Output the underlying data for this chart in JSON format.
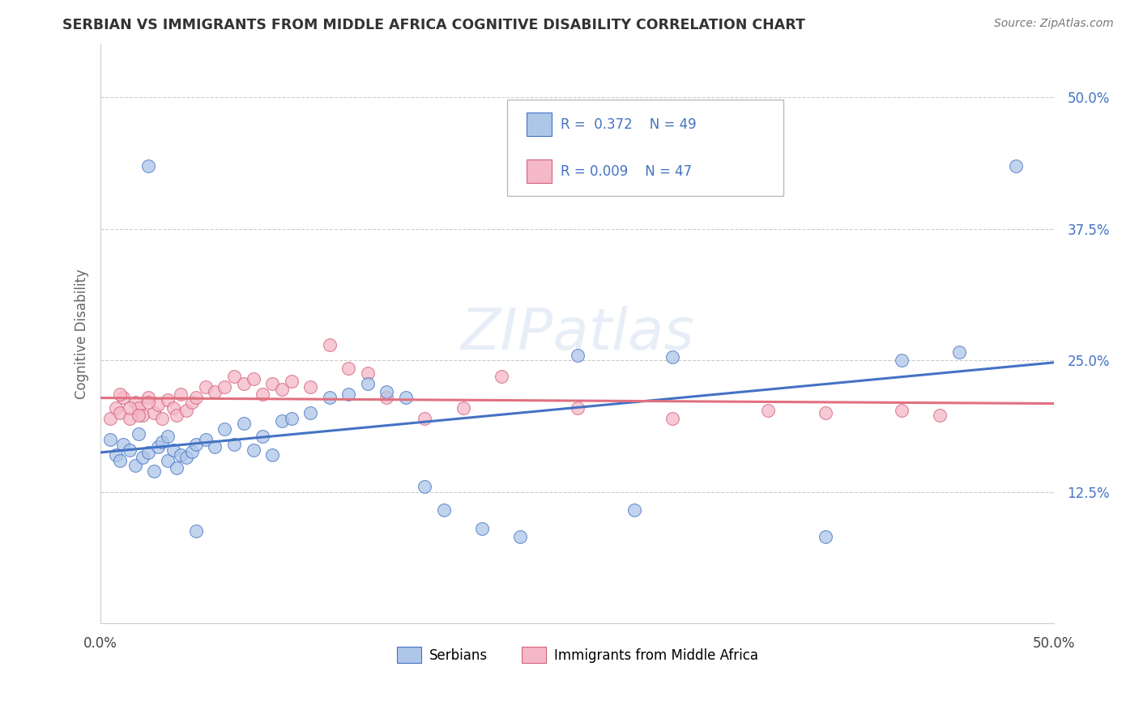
{
  "title": "SERBIAN VS IMMIGRANTS FROM MIDDLE AFRICA COGNITIVE DISABILITY CORRELATION CHART",
  "source": "Source: ZipAtlas.com",
  "ylabel": "Cognitive Disability",
  "legend_label1": "Serbians",
  "legend_label2": "Immigrants from Middle Africa",
  "r1": "0.372",
  "n1": "49",
  "r2": "0.009",
  "n2": "47",
  "xlim": [
    0.0,
    0.5
  ],
  "ylim": [
    0.0,
    0.55
  ],
  "yticks": [
    0.125,
    0.25,
    0.375,
    0.5
  ],
  "ytick_labels": [
    "12.5%",
    "25.0%",
    "37.5%",
    "50.0%"
  ],
  "color_serbian": "#aec6e8",
  "color_immigrant": "#f4b8c8",
  "line_color_serbian": "#4472c4",
  "line_color_immigrant": "#e07080",
  "background_color": "#ffffff",
  "scatter_alpha": 0.75,
  "serbian_x": [
    0.005,
    0.008,
    0.01,
    0.012,
    0.015,
    0.018,
    0.02,
    0.022,
    0.025,
    0.028,
    0.03,
    0.032,
    0.035,
    0.038,
    0.04,
    0.042,
    0.045,
    0.048,
    0.05,
    0.055,
    0.06,
    0.065,
    0.07,
    0.075,
    0.08,
    0.085,
    0.09,
    0.095,
    0.1,
    0.11,
    0.12,
    0.13,
    0.14,
    0.15,
    0.16,
    0.17,
    0.18,
    0.2,
    0.22,
    0.25,
    0.28,
    0.3,
    0.38,
    0.42,
    0.45,
    0.48,
    0.025,
    0.035,
    0.05
  ],
  "serbian_y": [
    0.175,
    0.16,
    0.155,
    0.17,
    0.165,
    0.15,
    0.18,
    0.158,
    0.162,
    0.145,
    0.168,
    0.172,
    0.155,
    0.165,
    0.148,
    0.16,
    0.158,
    0.163,
    0.17,
    0.175,
    0.168,
    0.185,
    0.17,
    0.19,
    0.165,
    0.178,
    0.16,
    0.192,
    0.195,
    0.2,
    0.215,
    0.218,
    0.228,
    0.22,
    0.215,
    0.13,
    0.108,
    0.09,
    0.082,
    0.255,
    0.108,
    0.253,
    0.082,
    0.25,
    0.258,
    0.435,
    0.435,
    0.178,
    0.088
  ],
  "immigrant_x": [
    0.005,
    0.008,
    0.01,
    0.012,
    0.015,
    0.018,
    0.02,
    0.022,
    0.025,
    0.028,
    0.03,
    0.032,
    0.035,
    0.038,
    0.04,
    0.042,
    0.045,
    0.048,
    0.05,
    0.055,
    0.06,
    0.065,
    0.07,
    0.075,
    0.08,
    0.085,
    0.09,
    0.095,
    0.1,
    0.11,
    0.12,
    0.13,
    0.14,
    0.15,
    0.17,
    0.19,
    0.21,
    0.25,
    0.3,
    0.35,
    0.38,
    0.42,
    0.44,
    0.01,
    0.015,
    0.02,
    0.025
  ],
  "immigrant_y": [
    0.195,
    0.205,
    0.2,
    0.215,
    0.195,
    0.21,
    0.205,
    0.198,
    0.215,
    0.2,
    0.208,
    0.195,
    0.212,
    0.205,
    0.198,
    0.218,
    0.202,
    0.21,
    0.215,
    0.225,
    0.22,
    0.225,
    0.235,
    0.228,
    0.232,
    0.218,
    0.228,
    0.222,
    0.23,
    0.225,
    0.265,
    0.242,
    0.238,
    0.215,
    0.195,
    0.205,
    0.235,
    0.205,
    0.195,
    0.202,
    0.2,
    0.202,
    0.198,
    0.218,
    0.205,
    0.198,
    0.21
  ]
}
